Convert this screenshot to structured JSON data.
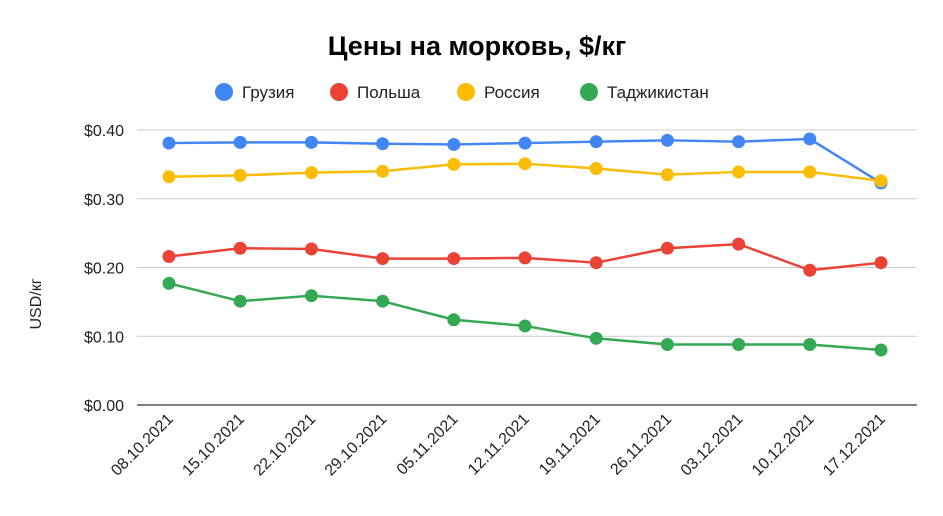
{
  "chart_data": {
    "type": "line",
    "title": "Цены на морковь, $/кг",
    "ylabel": "USD/кг",
    "xlabel": "",
    "categories": [
      "08.10.2021",
      "15.10.2021",
      "22.10.2021",
      "29.10.2021",
      "05.11.2021",
      "12.11.2021",
      "19.11.2021",
      "26.11.2021",
      "03.12.2021",
      "10.12.2021",
      "17.12.2021"
    ],
    "ylim": [
      0,
      0.4
    ],
    "yticks": [
      0,
      0.1,
      0.2,
      0.3,
      0.4
    ],
    "ytick_labels": [
      "$0.00",
      "$0.10",
      "$0.20",
      "$0.30",
      "$0.40"
    ],
    "grid": true,
    "legend_position": "top",
    "series": [
      {
        "name": "Грузия",
        "color": "#4285F4",
        "values": [
          0.381,
          0.382,
          0.382,
          0.38,
          0.379,
          0.381,
          0.383,
          0.385,
          0.383,
          0.387,
          0.323
        ]
      },
      {
        "name": "Польша",
        "color": "#EA4335",
        "values": [
          0.216,
          0.228,
          0.227,
          0.213,
          0.213,
          0.214,
          0.207,
          0.228,
          0.234,
          0.196,
          0.207
        ]
      },
      {
        "name": "Россия",
        "color": "#FBBC04",
        "values": [
          0.332,
          0.334,
          0.338,
          0.34,
          0.35,
          0.351,
          0.344,
          0.335,
          0.339,
          0.339,
          0.326
        ]
      },
      {
        "name": "Таджикистан",
        "color": "#34A853",
        "values": [
          0.177,
          0.151,
          0.159,
          0.151,
          0.124,
          0.115,
          0.097,
          0.088,
          0.088,
          0.088,
          0.08
        ]
      }
    ]
  }
}
